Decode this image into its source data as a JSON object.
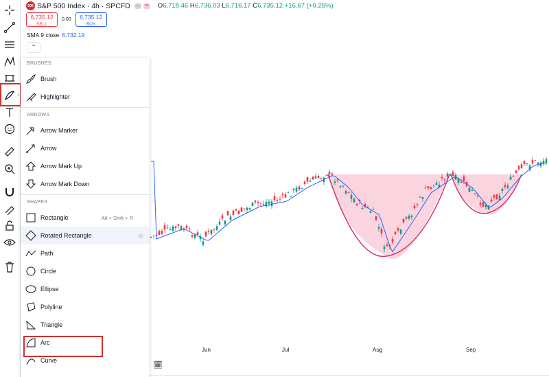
{
  "header": {
    "symbol_logo": "500",
    "title": "S&P 500 Index · 4h · SPCFD",
    "ohlc": {
      "o_label": "O",
      "o": "6,718.46",
      "h_label": "H",
      "h": "6,736.03",
      "l_label": "L",
      "l": "6,716.17",
      "c_label": "C",
      "c": "6,735.12",
      "change": "+16.67 (+0.25%)"
    }
  },
  "trade": {
    "sell_price": "6,735.12",
    "sell_label": "SELL",
    "spread": "0.00",
    "buy_price": "6,735.12",
    "buy_label": "BUY"
  },
  "indicator": {
    "name": "SMA 9 close",
    "value": "6,732.19"
  },
  "collapse_icon": "chevron-up-icon",
  "menu": {
    "sections": [
      {
        "title": "BRUSHES",
        "items": [
          {
            "label": "Brush",
            "icon": "brush-icon"
          },
          {
            "label": "Highlighter",
            "icon": "highlighter-icon"
          }
        ]
      },
      {
        "title": "ARROWS",
        "items": [
          {
            "label": "Arrow Marker",
            "icon": "arrow-marker-icon"
          },
          {
            "label": "Arrow",
            "icon": "arrow-icon"
          },
          {
            "label": "Arrow Mark Up",
            "icon": "arrow-up-icon"
          },
          {
            "label": "Arrow Mark Down",
            "icon": "arrow-down-icon"
          }
        ]
      },
      {
        "title": "SHAPES",
        "items": [
          {
            "label": "Rectangle",
            "icon": "rectangle-icon",
            "shortcut": "Alt + Shift + R"
          },
          {
            "label": "Rotated Rectangle",
            "icon": "rotated-rectangle-icon",
            "favorite": "☆"
          },
          {
            "label": "Path",
            "icon": "path-icon"
          },
          {
            "label": "Circle",
            "icon": "circle-icon"
          },
          {
            "label": "Ellipse",
            "icon": "ellipse-icon"
          },
          {
            "label": "Polyline",
            "icon": "polyline-icon"
          },
          {
            "label": "Triangle",
            "icon": "triangle-icon"
          },
          {
            "label": "Arc",
            "icon": "arc-icon"
          },
          {
            "label": "Curve",
            "icon": "curve-icon"
          }
        ]
      }
    ]
  },
  "x_axis": [
    "Jun",
    "Jul",
    "Aug",
    "Sep"
  ],
  "colors": {
    "up": "#089981",
    "down": "#f23645",
    "sma": "#2962ff",
    "pattern_fill": "#f8c6d3",
    "pattern_stroke": "#d6336c",
    "highlight": "#d32f2f"
  }
}
